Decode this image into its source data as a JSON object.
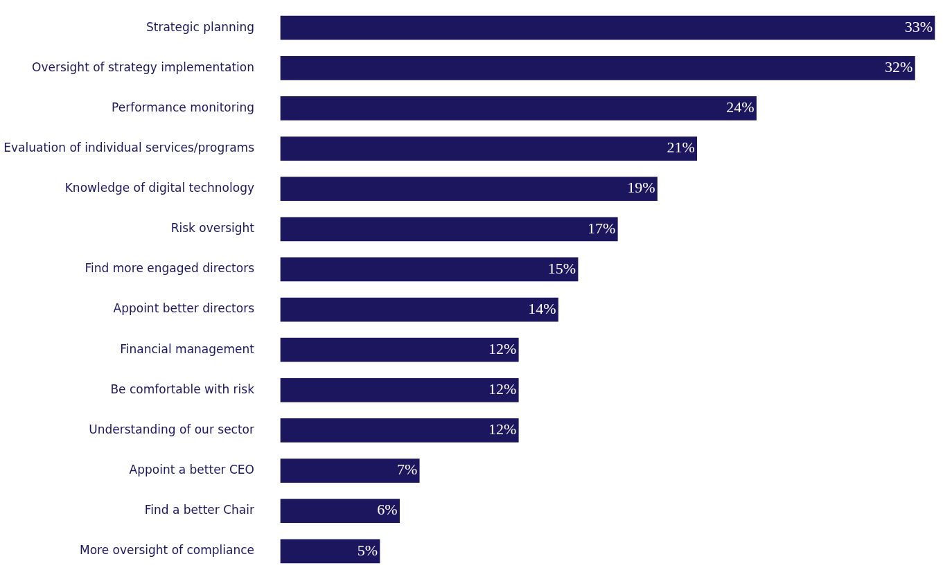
{
  "chart_data": {
    "type": "bar",
    "orientation": "horizontal",
    "categories": [
      "Strategic planning",
      "Oversight of strategy implementation",
      "Performance monitoring",
      "Evaluation of individual services/programs",
      "Knowledge of digital technology",
      "Risk oversight",
      "Find more engaged directors",
      "Appoint better directors",
      "Financial management",
      "Be comfortable with risk",
      "Understanding of our sector",
      "Appoint a better CEO",
      "Find a better Chair",
      "More oversight of compliance"
    ],
    "values": [
      33,
      32,
      24,
      21,
      19,
      17,
      15,
      14,
      12,
      12,
      12,
      7,
      6,
      5
    ],
    "value_labels": [
      "33%",
      "32%",
      "24%",
      "21%",
      "19%",
      "17%",
      "15%",
      "14%",
      "12%",
      "12%",
      "12%",
      "7%",
      "6%",
      "5%"
    ],
    "color": "#1b165e"
  }
}
